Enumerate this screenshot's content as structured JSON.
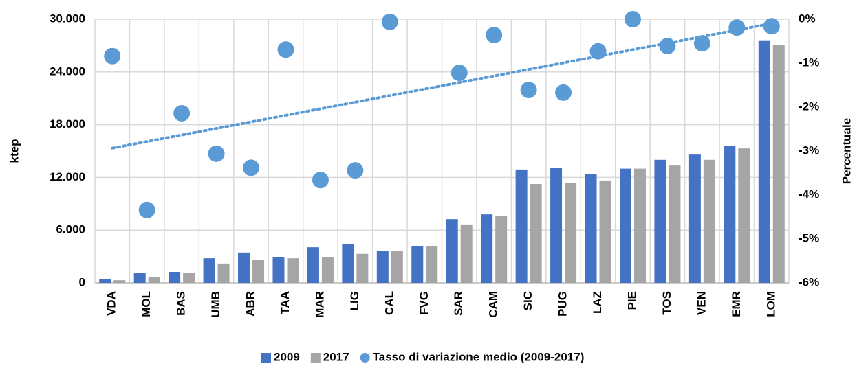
{
  "chart_data": {
    "type": "bar",
    "categories": [
      "VDA",
      "MOL",
      "BAS",
      "UMB",
      "ABR",
      "TAA",
      "MAR",
      "LIG",
      "CAL",
      "FVG",
      "SAR",
      "CAM",
      "SIC",
      "PUG",
      "LAZ",
      "PIE",
      "TOS",
      "VEN",
      "EMR",
      "LOM"
    ],
    "series": [
      {
        "name": "2009",
        "color": "#4472c4",
        "values": [
          400,
          1100,
          1250,
          2800,
          3450,
          2950,
          4050,
          4450,
          3600,
          4150,
          7250,
          7800,
          12900,
          13100,
          12350,
          13000,
          14000,
          14600,
          15600,
          27600
        ]
      },
      {
        "name": "2017",
        "color": "#a5a5a5",
        "values": [
          300,
          700,
          1100,
          2200,
          2650,
          2800,
          2950,
          3300,
          3600,
          4200,
          6650,
          7600,
          11250,
          11400,
          11650,
          13000,
          13350,
          14000,
          15300,
          27100
        ]
      },
      {
        "name": "Tasso di variazione medio (2009-2017)",
        "color": "#5b9bd5",
        "axis": "y2",
        "trendline": true,
        "values": [
          -0.84,
          -4.34,
          -2.14,
          -3.06,
          -3.38,
          -0.69,
          -3.66,
          -3.44,
          -0.06,
          null,
          -1.22,
          -0.36,
          -1.61,
          -1.67,
          -0.73,
          0,
          -0.61,
          -0.55,
          -0.19,
          -0.16
        ]
      }
    ],
    "y_label": "ktep",
    "y2_label": "Percentuale",
    "ylim": [
      0,
      30000
    ],
    "yticks": [
      0,
      {
        "value": 6000,
        "label": "6.000"
      },
      {
        "value": 12000,
        "label": "12.000"
      },
      {
        "value": 18000,
        "label": "18.000"
      },
      {
        "value": 24000,
        "label": "24.000"
      },
      {
        "value": 30000,
        "label": "30.000"
      }
    ],
    "y2lim": [
      -6,
      0
    ],
    "y2ticks": [
      {
        "value": -6,
        "label": "-6%"
      },
      {
        "value": -5,
        "label": "-5%"
      },
      {
        "value": -4,
        "label": "-4%"
      },
      {
        "value": -3,
        "label": "-3%"
      },
      {
        "value": -2,
        "label": "-2%"
      },
      {
        "value": -1,
        "label": "-1%"
      },
      {
        "value": 0,
        "label": "0%"
      }
    ],
    "grid": true,
    "legend": "bottom"
  }
}
